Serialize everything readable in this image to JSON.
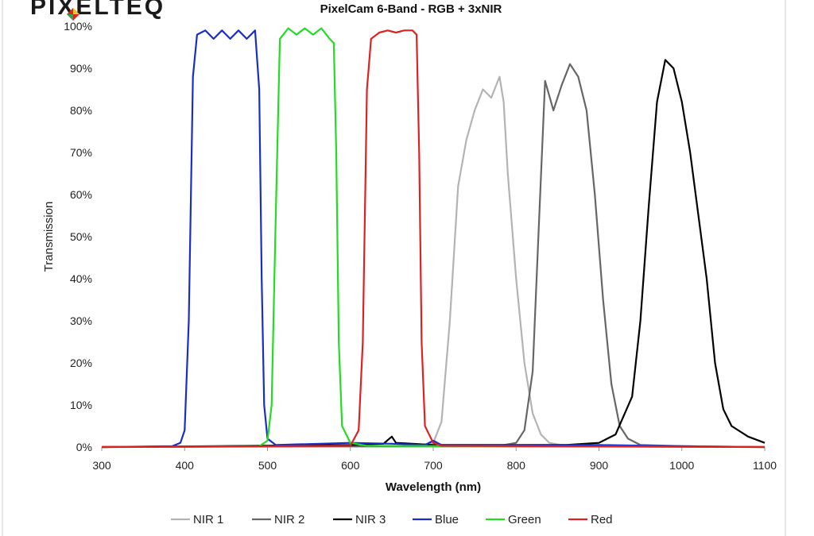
{
  "logo": {
    "text": "PIXELTEQ"
  },
  "chart_data": {
    "type": "line",
    "title": "PixelCam 6-Band  - RGB + 3xNIR",
    "xlabel": "Wavelength (nm)",
    "ylabel": "Transmission",
    "xlim": [
      300,
      1100
    ],
    "ylim": [
      0,
      100
    ],
    "x_ticks": [
      300,
      400,
      500,
      600,
      700,
      800,
      900,
      1000,
      1100
    ],
    "x_tick_labels": [
      "300",
      "400",
      "500",
      "600",
      "700",
      "800",
      "900",
      "1000",
      "1100"
    ],
    "y_ticks": [
      0,
      10,
      20,
      30,
      40,
      50,
      60,
      70,
      80,
      90,
      100
    ],
    "y_tick_labels": [
      "0%",
      "10%",
      "20%",
      "30%",
      "40%",
      "50%",
      "60%",
      "70%",
      "80%",
      "90%",
      "100%"
    ],
    "grid": false,
    "legend_position": "bottom",
    "series": [
      {
        "name": "NIR 1",
        "color": "#b3b3b3",
        "points": [
          [
            300,
            0
          ],
          [
            680,
            0.3
          ],
          [
            700,
            1
          ],
          [
            710,
            6
          ],
          [
            720,
            30
          ],
          [
            730,
            62
          ],
          [
            740,
            73
          ],
          [
            750,
            80
          ],
          [
            760,
            85
          ],
          [
            770,
            83
          ],
          [
            780,
            88
          ],
          [
            785,
            82
          ],
          [
            790,
            65
          ],
          [
            800,
            40
          ],
          [
            810,
            20
          ],
          [
            820,
            8
          ],
          [
            830,
            3
          ],
          [
            840,
            1
          ],
          [
            860,
            0.3
          ],
          [
            1100,
            0
          ]
        ]
      },
      {
        "name": "NIR 2",
        "color": "#666666",
        "points": [
          [
            300,
            0
          ],
          [
            780,
            0.3
          ],
          [
            800,
            1
          ],
          [
            810,
            4
          ],
          [
            820,
            18
          ],
          [
            828,
            55
          ],
          [
            835,
            87
          ],
          [
            845,
            80
          ],
          [
            855,
            86
          ],
          [
            865,
            91
          ],
          [
            875,
            88
          ],
          [
            885,
            80
          ],
          [
            895,
            60
          ],
          [
            905,
            35
          ],
          [
            915,
            15
          ],
          [
            925,
            5
          ],
          [
            935,
            2
          ],
          [
            950,
            0.5
          ],
          [
            1000,
            0.2
          ],
          [
            1100,
            0
          ]
        ]
      },
      {
        "name": "NIR 3",
        "color": "#000000",
        "points": [
          [
            300,
            0
          ],
          [
            600,
            0.5
          ],
          [
            640,
            0.8
          ],
          [
            650,
            2.5
          ],
          [
            655,
            1
          ],
          [
            700,
            0.5
          ],
          [
            860,
            0.5
          ],
          [
            900,
            1
          ],
          [
            920,
            3
          ],
          [
            940,
            12
          ],
          [
            950,
            30
          ],
          [
            960,
            57
          ],
          [
            970,
            82
          ],
          [
            980,
            92
          ],
          [
            990,
            90
          ],
          [
            1000,
            82
          ],
          [
            1010,
            70
          ],
          [
            1020,
            55
          ],
          [
            1030,
            40
          ],
          [
            1040,
            20
          ],
          [
            1050,
            9
          ],
          [
            1060,
            5
          ],
          [
            1080,
            2.5
          ],
          [
            1100,
            1
          ]
        ]
      },
      {
        "name": "Blue",
        "color": "#1a2ec7",
        "points": [
          [
            300,
            0
          ],
          [
            385,
            0.2
          ],
          [
            395,
            1
          ],
          [
            400,
            4
          ],
          [
            405,
            30
          ],
          [
            410,
            88
          ],
          [
            415,
            98
          ],
          [
            425,
            99
          ],
          [
            435,
            97
          ],
          [
            445,
            99
          ],
          [
            455,
            97
          ],
          [
            465,
            99
          ],
          [
            475,
            97
          ],
          [
            485,
            99
          ],
          [
            490,
            85
          ],
          [
            493,
            40
          ],
          [
            496,
            10
          ],
          [
            500,
            2
          ],
          [
            510,
            0.5
          ],
          [
            600,
            1
          ],
          [
            650,
            0.8
          ],
          [
            690,
            0.5
          ],
          [
            700,
            1.5
          ],
          [
            710,
            0.5
          ],
          [
            900,
            0.5
          ],
          [
            960,
            0.3
          ],
          [
            1100,
            0
          ]
        ]
      },
      {
        "name": "Green",
        "color": "#22dd22",
        "points": [
          [
            300,
            0
          ],
          [
            490,
            0.2
          ],
          [
            500,
            1.5
          ],
          [
            505,
            10
          ],
          [
            510,
            55
          ],
          [
            515,
            97
          ],
          [
            525,
            99.5
          ],
          [
            535,
            98
          ],
          [
            545,
            99.5
          ],
          [
            555,
            98
          ],
          [
            565,
            99.5
          ],
          [
            575,
            97
          ],
          [
            580,
            96
          ],
          [
            583,
            70
          ],
          [
            586,
            25
          ],
          [
            590,
            5
          ],
          [
            600,
            1
          ],
          [
            620,
            0.3
          ],
          [
            1100,
            0
          ]
        ]
      },
      {
        "name": "Red",
        "color": "#dd2222",
        "points": [
          [
            300,
            0
          ],
          [
            600,
            0.3
          ],
          [
            610,
            4
          ],
          [
            615,
            25
          ],
          [
            620,
            85
          ],
          [
            625,
            97
          ],
          [
            635,
            98.5
          ],
          [
            645,
            99
          ],
          [
            655,
            98.5
          ],
          [
            665,
            99
          ],
          [
            675,
            99
          ],
          [
            680,
            98
          ],
          [
            683,
            70
          ],
          [
            686,
            25
          ],
          [
            690,
            5
          ],
          [
            700,
            1
          ],
          [
            710,
            0.3
          ],
          [
            1100,
            0
          ]
        ]
      }
    ]
  }
}
